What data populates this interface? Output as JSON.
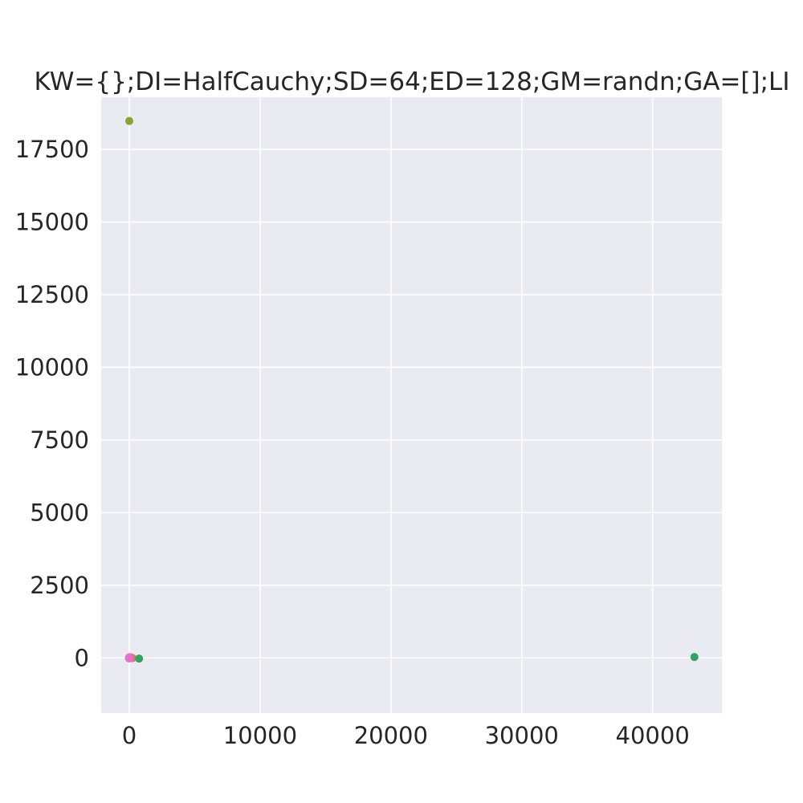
{
  "chart_data": {
    "type": "scatter",
    "title": "KW={};DI=HalfCauchy;SD=64;ED=128;GM=randn;GA=[];LI",
    "xlabel": "",
    "ylabel": "",
    "xlim": [
      -2150,
      45300
    ],
    "ylim": [
      -1900,
      19300
    ],
    "x_ticks": [
      0,
      10000,
      20000,
      30000,
      40000
    ],
    "y_ticks": [
      0,
      2500,
      5000,
      7500,
      10000,
      12500,
      15000,
      17500
    ],
    "grid": true,
    "legend": "none",
    "series": [
      {
        "color": "#d47a5a",
        "points": [
          [
            40,
            5
          ],
          [
            250,
            -10
          ],
          [
            120,
            20
          ],
          [
            -30,
            0
          ]
        ]
      },
      {
        "color": "#8da033",
        "points": [
          [
            0,
            18480
          ],
          [
            -20,
            -15
          ]
        ]
      },
      {
        "color": "#2fa55f",
        "points": [
          [
            43200,
            30
          ],
          [
            750,
            -25
          ]
        ]
      },
      {
        "color": "#33b0b5",
        "points": [
          [
            10,
            10
          ],
          [
            -20,
            -5
          ]
        ]
      },
      {
        "color": "#8f8be0",
        "points": [
          [
            5,
            -15
          ],
          [
            30,
            10
          ]
        ]
      },
      {
        "color": "#e86fd0",
        "points": [
          [
            0,
            0
          ],
          [
            20,
            -20
          ],
          [
            -10,
            15
          ],
          [
            30,
            25
          ]
        ]
      }
    ]
  }
}
